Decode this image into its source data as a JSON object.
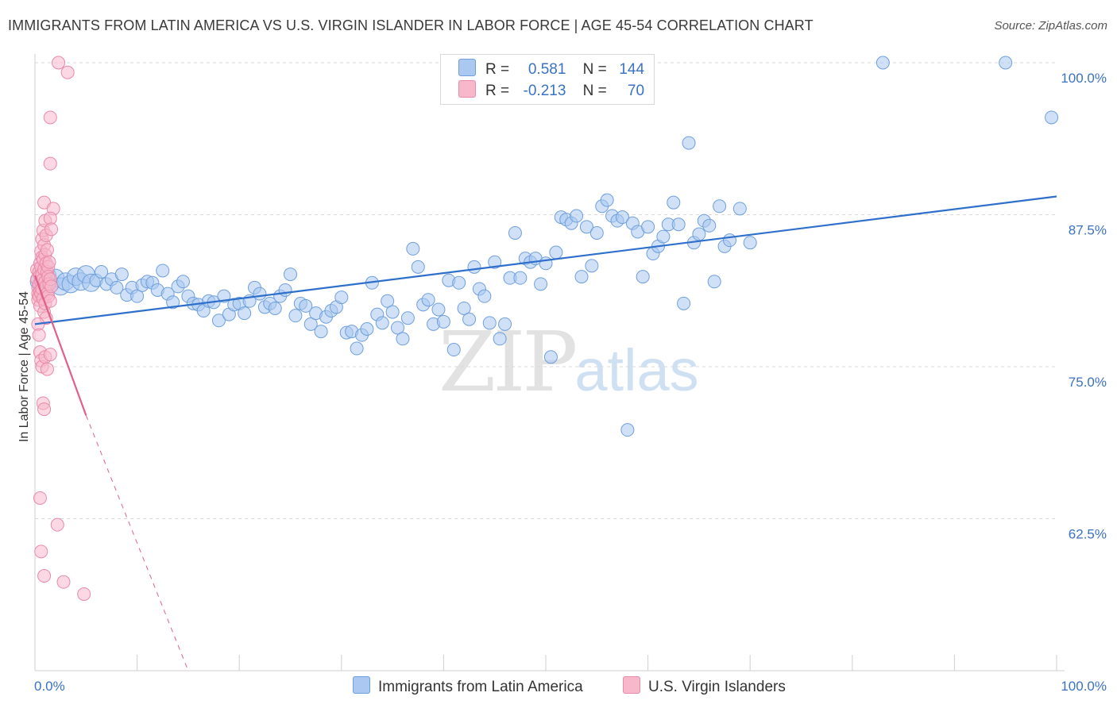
{
  "title": "IMMIGRANTS FROM LATIN AMERICA VS U.S. VIRGIN ISLANDER IN LABOR FORCE | AGE 45-54 CORRELATION CHART",
  "source": "Source: ZipAtlas.com",
  "watermark": {
    "zip": "ZIP",
    "atlas": "atlas"
  },
  "legend": {
    "r_label": "R =",
    "n_label": "N =",
    "blue": {
      "r": "0.581",
      "n": "144"
    },
    "pink": {
      "r": "-0.213",
      "n": "70"
    }
  },
  "colors": {
    "blue_fill": "#aac8f0",
    "blue_stroke": "#6f9fdc",
    "blue_line": "#2f6fcc",
    "pink_fill": "#f7b8cc",
    "pink_stroke": "#e98aa8",
    "pink_line": "#e0608a",
    "grid": "#d8d8d8",
    "tick_label": "#3a72c4"
  },
  "chart_data": {
    "type": "scatter",
    "ylabel": "In Labor Force | Age 45-54",
    "xlim": [
      0,
      100
    ],
    "ylim": [
      50,
      100
    ],
    "x_tick_labels": [
      "0.0%",
      "100.0%"
    ],
    "y_ticks": [
      {
        "value": 100.0,
        "label": "100.0%"
      },
      {
        "value": 87.5,
        "label": "87.5%"
      },
      {
        "value": 75.0,
        "label": "75.0%"
      },
      {
        "value": 62.5,
        "label": "62.5%"
      }
    ],
    "series": [
      {
        "name": "Immigrants from Latin America",
        "color": "blue",
        "trend": {
          "x0": 0,
          "y0": 78.5,
          "x1": 100,
          "y1": 89.0
        },
        "points": [
          [
            0.4,
            82.0
          ],
          [
            0.8,
            81.5
          ],
          [
            1.2,
            82.5
          ],
          [
            1.5,
            81.8
          ],
          [
            2.0,
            82.3
          ],
          [
            2.5,
            81.6
          ],
          [
            3.0,
            82.0
          ],
          [
            3.5,
            81.8
          ],
          [
            4.0,
            82.4
          ],
          [
            4.5,
            82.0
          ],
          [
            5.0,
            82.6
          ],
          [
            5.5,
            81.9
          ],
          [
            6.0,
            82.1
          ],
          [
            6.5,
            82.8
          ],
          [
            7.0,
            81.8
          ],
          [
            7.5,
            82.2
          ],
          [
            8.0,
            81.5
          ],
          [
            8.5,
            82.6
          ],
          [
            9.0,
            80.9
          ],
          [
            9.5,
            81.5
          ],
          [
            10.0,
            80.8
          ],
          [
            10.5,
            81.7
          ],
          [
            11.0,
            82.0
          ],
          [
            11.5,
            81.9
          ],
          [
            12.0,
            81.3
          ],
          [
            12.5,
            82.9
          ],
          [
            13.0,
            81.0
          ],
          [
            13.5,
            80.3
          ],
          [
            14.0,
            81.6
          ],
          [
            14.5,
            82.0
          ],
          [
            15.0,
            80.8
          ],
          [
            15.5,
            80.2
          ],
          [
            16.0,
            80.1
          ],
          [
            16.5,
            79.6
          ],
          [
            17.0,
            80.4
          ],
          [
            17.5,
            80.3
          ],
          [
            18.0,
            78.8
          ],
          [
            18.5,
            80.8
          ],
          [
            19.0,
            79.3
          ],
          [
            19.5,
            80.1
          ],
          [
            20.0,
            80.2
          ],
          [
            20.5,
            79.4
          ],
          [
            21.0,
            80.4
          ],
          [
            21.5,
            81.5
          ],
          [
            22.0,
            81.0
          ],
          [
            22.5,
            79.9
          ],
          [
            23.0,
            80.2
          ],
          [
            23.5,
            79.8
          ],
          [
            24.0,
            80.8
          ],
          [
            24.5,
            81.3
          ],
          [
            25.0,
            82.6
          ],
          [
            25.5,
            79.2
          ],
          [
            26.0,
            80.2
          ],
          [
            26.5,
            80.0
          ],
          [
            27.0,
            78.5
          ],
          [
            27.5,
            79.4
          ],
          [
            28.0,
            77.9
          ],
          [
            28.5,
            79.1
          ],
          [
            29.0,
            79.6
          ],
          [
            29.5,
            79.9
          ],
          [
            30.0,
            80.7
          ],
          [
            30.5,
            77.8
          ],
          [
            31.0,
            77.9
          ],
          [
            31.5,
            76.5
          ],
          [
            32.0,
            77.6
          ],
          [
            32.5,
            78.1
          ],
          [
            33.0,
            81.9
          ],
          [
            33.5,
            79.3
          ],
          [
            34.0,
            78.6
          ],
          [
            34.5,
            80.4
          ],
          [
            35.0,
            79.5
          ],
          [
            35.5,
            78.2
          ],
          [
            36.0,
            77.3
          ],
          [
            36.5,
            79.0
          ],
          [
            37.0,
            84.7
          ],
          [
            37.5,
            83.2
          ],
          [
            38.0,
            80.1
          ],
          [
            38.5,
            80.5
          ],
          [
            39.0,
            78.5
          ],
          [
            39.5,
            79.7
          ],
          [
            40.0,
            78.7
          ],
          [
            40.5,
            82.1
          ],
          [
            41.0,
            76.4
          ],
          [
            41.5,
            81.9
          ],
          [
            42.0,
            79.8
          ],
          [
            42.5,
            78.9
          ],
          [
            43.0,
            83.2
          ],
          [
            43.5,
            81.4
          ],
          [
            44.0,
            80.8
          ],
          [
            44.5,
            78.6
          ],
          [
            45.0,
            83.6
          ],
          [
            45.5,
            77.3
          ],
          [
            46.0,
            78.5
          ],
          [
            46.5,
            82.3
          ],
          [
            47.0,
            86.0
          ],
          [
            47.5,
            82.3
          ],
          [
            48.0,
            83.9
          ],
          [
            48.5,
            83.6
          ],
          [
            49.0,
            83.9
          ],
          [
            49.5,
            81.8
          ],
          [
            50.0,
            83.5
          ],
          [
            50.5,
            75.8
          ],
          [
            51.0,
            84.4
          ],
          [
            51.5,
            87.3
          ],
          [
            52.0,
            87.1
          ],
          [
            52.5,
            86.8
          ],
          [
            53.0,
            87.4
          ],
          [
            53.5,
            82.4
          ],
          [
            54.0,
            86.5
          ],
          [
            54.5,
            83.3
          ],
          [
            55.0,
            86.0
          ],
          [
            55.5,
            88.2
          ],
          [
            56.0,
            88.7
          ],
          [
            56.5,
            87.4
          ],
          [
            57.0,
            87.0
          ],
          [
            57.5,
            87.3
          ],
          [
            58.0,
            69.8
          ],
          [
            58.5,
            86.8
          ],
          [
            59.0,
            86.1
          ],
          [
            59.5,
            82.4
          ],
          [
            60.0,
            86.5
          ],
          [
            60.5,
            84.3
          ],
          [
            61.0,
            84.9
          ],
          [
            61.5,
            85.7
          ],
          [
            62.0,
            86.7
          ],
          [
            62.5,
            88.5
          ],
          [
            63.0,
            86.7
          ],
          [
            63.5,
            80.2
          ],
          [
            64.0,
            93.4
          ],
          [
            64.5,
            85.2
          ],
          [
            65.0,
            85.9
          ],
          [
            65.5,
            87.0
          ],
          [
            66.0,
            86.6
          ],
          [
            66.5,
            82.0
          ],
          [
            67.0,
            88.2
          ],
          [
            67.5,
            84.9
          ],
          [
            68.0,
            85.4
          ],
          [
            69.0,
            88.0
          ],
          [
            70.0,
            85.2
          ],
          [
            83.0,
            100.0
          ],
          [
            95.0,
            100.0
          ],
          [
            99.5,
            95.5
          ]
        ]
      },
      {
        "name": "U.S. Virgin Islanders",
        "color": "pink",
        "trend": {
          "x0": 0,
          "y0": 82.5,
          "x1": 5,
          "y1": 71.0,
          "dash_x1": 15,
          "dash_y1": 50.0
        },
        "points": [
          [
            0.2,
            83.0
          ],
          [
            0.2,
            82.2
          ],
          [
            0.3,
            81.5
          ],
          [
            0.3,
            81.0
          ],
          [
            0.3,
            80.5
          ],
          [
            0.4,
            82.8
          ],
          [
            0.4,
            81.8
          ],
          [
            0.4,
            80.8
          ],
          [
            0.5,
            83.5
          ],
          [
            0.5,
            82.5
          ],
          [
            0.5,
            81.2
          ],
          [
            0.5,
            80.0
          ],
          [
            0.6,
            84.5
          ],
          [
            0.6,
            83.2
          ],
          [
            0.6,
            82.0
          ],
          [
            0.6,
            81.0
          ],
          [
            0.7,
            85.5
          ],
          [
            0.7,
            84.0
          ],
          [
            0.7,
            82.6
          ],
          [
            0.7,
            81.4
          ],
          [
            0.8,
            86.2
          ],
          [
            0.8,
            83.8
          ],
          [
            0.8,
            82.2
          ],
          [
            0.8,
            80.6
          ],
          [
            0.9,
            88.5
          ],
          [
            0.9,
            85.0
          ],
          [
            0.9,
            83.0
          ],
          [
            0.9,
            79.5
          ],
          [
            1.0,
            87.0
          ],
          [
            1.0,
            84.2
          ],
          [
            1.0,
            82.0
          ],
          [
            1.0,
            80.2
          ],
          [
            1.1,
            85.8
          ],
          [
            1.1,
            83.5
          ],
          [
            1.1,
            81.6
          ],
          [
            1.1,
            79.0
          ],
          [
            1.2,
            84.6
          ],
          [
            1.2,
            82.8
          ],
          [
            1.2,
            81.0
          ],
          [
            1.3,
            83.2
          ],
          [
            1.3,
            82.4
          ],
          [
            1.3,
            80.8
          ],
          [
            1.4,
            83.6
          ],
          [
            1.4,
            81.8
          ],
          [
            1.5,
            82.2
          ],
          [
            1.5,
            80.4
          ],
          [
            1.6,
            81.6
          ],
          [
            0.3,
            78.5
          ],
          [
            0.4,
            77.6
          ],
          [
            0.5,
            76.2
          ],
          [
            0.6,
            75.5
          ],
          [
            0.7,
            75.0
          ],
          [
            0.8,
            72.0
          ],
          [
            0.9,
            71.5
          ],
          [
            1.0,
            75.8
          ],
          [
            1.2,
            74.8
          ],
          [
            1.5,
            76.0
          ],
          [
            0.5,
            64.2
          ],
          [
            0.6,
            59.8
          ],
          [
            0.9,
            57.8
          ],
          [
            2.2,
            62.0
          ],
          [
            2.8,
            57.3
          ],
          [
            4.8,
            56.3
          ],
          [
            1.5,
            95.5
          ],
          [
            1.5,
            91.7
          ],
          [
            1.8,
            88.0
          ],
          [
            1.5,
            87.2
          ],
          [
            1.6,
            86.3
          ],
          [
            2.3,
            100.0
          ],
          [
            3.2,
            99.2
          ]
        ]
      }
    ],
    "legend_position": "top-center"
  },
  "bottom_legend": {
    "blue_label": "Immigrants from Latin America",
    "pink_label": "U.S. Virgin Islanders"
  }
}
